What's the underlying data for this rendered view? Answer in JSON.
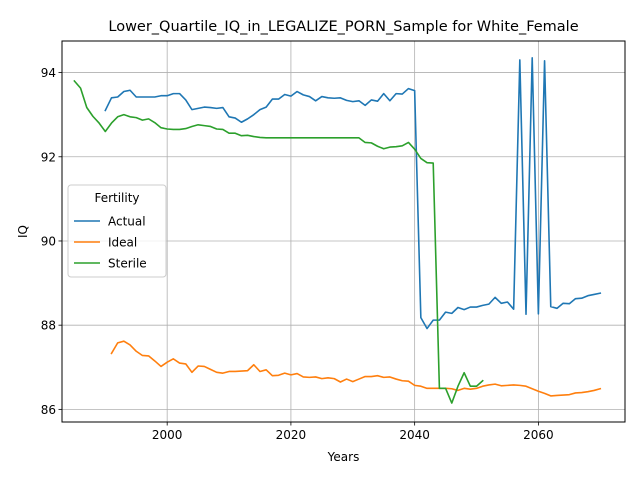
{
  "chart_data": {
    "type": "line",
    "title": "Lower_Quartile_IQ_in_LEGALIZE_PORN_Sample for White_Female",
    "xlabel": "Years",
    "ylabel": "IQ",
    "xlim": [
      1983,
      2074
    ],
    "ylim": [
      85.7,
      94.75
    ],
    "xticks": [
      2000,
      2020,
      2040,
      2060
    ],
    "yticks": [
      86,
      88,
      90,
      92,
      94
    ],
    "grid": true,
    "legend": {
      "title": "Fertility",
      "placement": "center-left"
    },
    "series": [
      {
        "name": "Actual",
        "color": "#1f77b4",
        "x": [
          1990,
          1991,
          1992,
          1993,
          1994,
          1995,
          1996,
          1997,
          1998,
          1999,
          2000,
          2001,
          2002,
          2003,
          2004,
          2005,
          2006,
          2007,
          2008,
          2009,
          2010,
          2011,
          2012,
          2013,
          2014,
          2015,
          2016,
          2017,
          2018,
          2019,
          2020,
          2021,
          2022,
          2023,
          2024,
          2025,
          2026,
          2027,
          2028,
          2029,
          2030,
          2031,
          2032,
          2033,
          2034,
          2035,
          2036,
          2037,
          2038,
          2039,
          2040,
          2041,
          2042,
          2043,
          2044,
          2045,
          2046,
          2047,
          2048,
          2049,
          2050,
          2051,
          2052,
          2053,
          2054,
          2055,
          2056,
          2057,
          2058,
          2059,
          2060,
          2061,
          2062,
          2063,
          2064,
          2065,
          2066,
          2067,
          2068,
          2069,
          2070
        ],
        "y": [
          93.1,
          93.4,
          93.42,
          93.55,
          93.58,
          93.42,
          93.42,
          93.42,
          93.42,
          93.45,
          93.45,
          93.5,
          93.5,
          93.35,
          93.12,
          93.15,
          93.18,
          93.17,
          93.15,
          93.17,
          92.95,
          92.92,
          92.82,
          92.9,
          93.0,
          93.12,
          93.18,
          93.37,
          93.37,
          93.48,
          93.44,
          93.55,
          93.47,
          93.43,
          93.33,
          93.43,
          93.4,
          93.39,
          93.4,
          93.34,
          93.31,
          93.33,
          93.22,
          93.35,
          93.32,
          93.5,
          93.33,
          93.5,
          93.49,
          93.62,
          93.57,
          88.18,
          87.92,
          88.12,
          88.12,
          88.31,
          88.28,
          88.42,
          88.37,
          88.43,
          88.43,
          88.47,
          88.5,
          88.66,
          88.52,
          88.55,
          88.38,
          94.3,
          88.26,
          94.35,
          88.27,
          94.28,
          88.44,
          88.4,
          88.52,
          88.51,
          88.63,
          88.64,
          88.7,
          88.73,
          88.76
        ]
      },
      {
        "name": "Ideal",
        "color": "#ff7f0e",
        "x": [
          1991,
          1992,
          1993,
          1994,
          1995,
          1996,
          1997,
          1998,
          1999,
          2000,
          2001,
          2002,
          2003,
          2004,
          2005,
          2006,
          2007,
          2008,
          2009,
          2010,
          2011,
          2012,
          2013,
          2014,
          2015,
          2016,
          2017,
          2018,
          2019,
          2020,
          2021,
          2022,
          2023,
          2024,
          2025,
          2026,
          2027,
          2028,
          2029,
          2030,
          2031,
          2032,
          2033,
          2034,
          2035,
          2036,
          2037,
          2038,
          2039,
          2040,
          2041,
          2042,
          2043,
          2044,
          2045,
          2046,
          2047,
          2048,
          2049,
          2050,
          2051,
          2052,
          2053,
          2054,
          2055,
          2056,
          2057,
          2058,
          2059,
          2060,
          2061,
          2062,
          2063,
          2064,
          2065,
          2066,
          2067,
          2068,
          2069,
          2070
        ],
        "y": [
          87.33,
          87.58,
          87.62,
          87.53,
          87.38,
          87.28,
          87.27,
          87.15,
          87.02,
          87.12,
          87.2,
          87.1,
          87.08,
          86.88,
          87.03,
          87.02,
          86.95,
          86.88,
          86.86,
          86.9,
          86.9,
          86.91,
          86.92,
          87.06,
          86.9,
          86.94,
          86.8,
          86.81,
          86.86,
          86.82,
          86.85,
          86.77,
          86.76,
          86.77,
          86.73,
          86.75,
          86.73,
          86.65,
          86.72,
          86.66,
          86.72,
          86.78,
          86.78,
          86.8,
          86.76,
          86.77,
          86.72,
          86.68,
          86.67,
          86.57,
          86.55,
          86.5,
          86.5,
          86.5,
          86.5,
          86.49,
          86.45,
          86.5,
          86.48,
          86.5,
          86.55,
          86.58,
          86.6,
          86.56,
          86.57,
          86.58,
          86.57,
          86.55,
          86.49,
          86.43,
          86.38,
          86.32,
          86.33,
          86.34,
          86.35,
          86.39,
          86.4,
          86.42,
          86.45,
          86.49
        ]
      },
      {
        "name": "Sterile",
        "color": "#2ca02c",
        "x": [
          1985,
          1986,
          1987,
          1988,
          1989,
          1990,
          1991,
          1992,
          1993,
          1994,
          1995,
          1996,
          1997,
          1998,
          1999,
          2000,
          2001,
          2002,
          2003,
          2004,
          2005,
          2006,
          2007,
          2008,
          2009,
          2010,
          2011,
          2012,
          2013,
          2014,
          2015,
          2016,
          2017,
          2018,
          2019,
          2020,
          2021,
          2022,
          2023,
          2024,
          2025,
          2026,
          2027,
          2028,
          2029,
          2030,
          2031,
          2032,
          2033,
          2034,
          2035,
          2036,
          2037,
          2038,
          2039,
          2040,
          2041,
          2042,
          2043,
          2044,
          2045,
          2046,
          2047,
          2048,
          2049,
          2050,
          2051
        ],
        "y": [
          93.8,
          93.63,
          93.17,
          92.96,
          92.8,
          92.6,
          92.8,
          92.95,
          93.0,
          92.95,
          92.93,
          92.87,
          92.9,
          92.81,
          92.69,
          92.66,
          92.65,
          92.65,
          92.67,
          92.72,
          92.76,
          92.74,
          92.72,
          92.66,
          92.65,
          92.56,
          92.56,
          92.5,
          92.51,
          92.48,
          92.46,
          92.45,
          92.45,
          92.45,
          92.45,
          92.45,
          92.45,
          92.45,
          92.45,
          92.45,
          92.45,
          92.45,
          92.45,
          92.45,
          92.45,
          92.45,
          92.45,
          92.34,
          92.33,
          92.25,
          92.19,
          92.23,
          92.24,
          92.26,
          92.34,
          92.18,
          91.96,
          91.86,
          91.85,
          86.5,
          86.5,
          86.15,
          86.55,
          86.87,
          86.55,
          86.55,
          86.68
        ]
      }
    ]
  }
}
